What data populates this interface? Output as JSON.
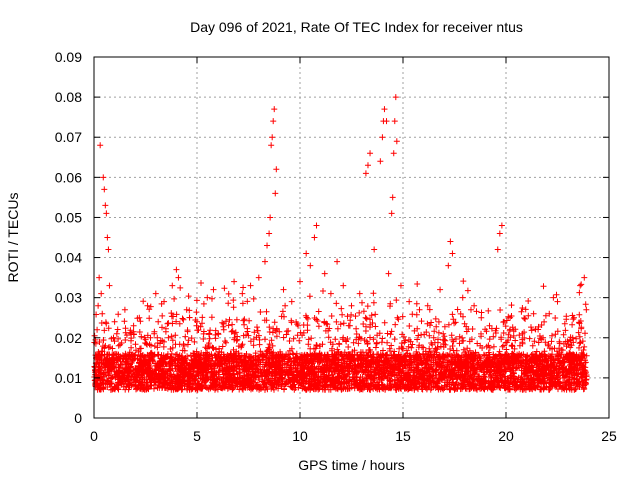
{
  "chart_data": {
    "type": "scatter",
    "title": "Day 096 of 2021, Rate Of TEC Index for receiver ntus",
    "xlabel": "GPS time / hours",
    "ylabel": "ROTI / TECUs",
    "xlim": [
      0,
      25
    ],
    "ylim": [
      0,
      0.09
    ],
    "x_ticks": [
      0,
      5,
      10,
      15,
      20,
      25
    ],
    "x_tick_labels": [
      "0",
      "5",
      "10",
      "15",
      "20",
      "25"
    ],
    "y_ticks": [
      0,
      0.01,
      0.02,
      0.03,
      0.04,
      0.05,
      0.06,
      0.07,
      0.08,
      0.09
    ],
    "y_tick_labels": [
      "0",
      "0.01",
      "0.02",
      "0.03",
      "0.04",
      "0.05",
      "0.06",
      "0.07",
      "0.08",
      "0.09"
    ],
    "grid": true,
    "marker": "+",
    "color": "#ff0000",
    "series": [
      {
        "points": [
          [
            0.05,
            0.012
          ],
          [
            0.1,
            0.015
          ],
          [
            0.15,
            0.022
          ],
          [
            0.2,
            0.028
          ],
          [
            0.25,
            0.035
          ],
          [
            0.3,
            0.068
          ],
          [
            0.35,
            0.031
          ],
          [
            0.4,
            0.026
          ],
          [
            0.45,
            0.06
          ],
          [
            0.5,
            0.057
          ],
          [
            0.55,
            0.053
          ],
          [
            0.6,
            0.051
          ],
          [
            0.65,
            0.045
          ],
          [
            0.7,
            0.042
          ],
          [
            0.75,
            0.033
          ],
          [
            1.0,
            0.024
          ],
          [
            1.2,
            0.018
          ],
          [
            1.5,
            0.027
          ],
          [
            1.8,
            0.021
          ],
          [
            2.2,
            0.025
          ],
          [
            2.6,
            0.028
          ],
          [
            3.0,
            0.031
          ],
          [
            3.4,
            0.029
          ],
          [
            3.8,
            0.033
          ],
          [
            4.0,
            0.037
          ],
          [
            4.1,
            0.035
          ],
          [
            4.5,
            0.027
          ],
          [
            5.0,
            0.024
          ],
          [
            5.5,
            0.03
          ],
          [
            5.8,
            0.032
          ],
          [
            6.3,
            0.022
          ],
          [
            6.8,
            0.034
          ],
          [
            7.2,
            0.031
          ],
          [
            7.6,
            0.033
          ],
          [
            8.0,
            0.035
          ],
          [
            8.3,
            0.039
          ],
          [
            8.4,
            0.043
          ],
          [
            8.5,
            0.046
          ],
          [
            8.55,
            0.05
          ],
          [
            8.6,
            0.068
          ],
          [
            8.65,
            0.07
          ],
          [
            8.7,
            0.074
          ],
          [
            8.75,
            0.077
          ],
          [
            8.8,
            0.056
          ],
          [
            8.85,
            0.062
          ],
          [
            9.2,
            0.032
          ],
          [
            9.6,
            0.029
          ],
          [
            10.0,
            0.034
          ],
          [
            10.3,
            0.041
          ],
          [
            10.5,
            0.038
          ],
          [
            10.7,
            0.045
          ],
          [
            10.8,
            0.048
          ],
          [
            11.2,
            0.036
          ],
          [
            11.5,
            0.031
          ],
          [
            11.8,
            0.039
          ],
          [
            12.1,
            0.033
          ],
          [
            12.5,
            0.028
          ],
          [
            12.9,
            0.031
          ],
          [
            13.2,
            0.061
          ],
          [
            13.3,
            0.063
          ],
          [
            13.4,
            0.066
          ],
          [
            13.6,
            0.042
          ],
          [
            13.9,
            0.064
          ],
          [
            14.0,
            0.07
          ],
          [
            14.05,
            0.074
          ],
          [
            14.1,
            0.077
          ],
          [
            14.2,
            0.074
          ],
          [
            14.3,
            0.036
          ],
          [
            14.45,
            0.051
          ],
          [
            14.5,
            0.055
          ],
          [
            14.55,
            0.066
          ],
          [
            14.6,
            0.074
          ],
          [
            14.65,
            0.08
          ],
          [
            14.7,
            0.069
          ],
          [
            14.9,
            0.033
          ],
          [
            15.3,
            0.029
          ],
          [
            15.8,
            0.027
          ],
          [
            16.2,
            0.028
          ],
          [
            16.8,
            0.032
          ],
          [
            17.2,
            0.038
          ],
          [
            17.3,
            0.044
          ],
          [
            17.4,
            0.041
          ],
          [
            17.9,
            0.03
          ],
          [
            18.3,
            0.027
          ],
          [
            18.8,
            0.025
          ],
          [
            19.2,
            0.023
          ],
          [
            19.6,
            0.042
          ],
          [
            19.7,
            0.046
          ],
          [
            19.8,
            0.048
          ],
          [
            20.2,
            0.025
          ],
          [
            20.8,
            0.021
          ],
          [
            21.3,
            0.018
          ],
          [
            21.8,
            0.02
          ],
          [
            22.1,
            0.026
          ],
          [
            22.3,
            0.03
          ],
          [
            22.5,
            0.029
          ],
          [
            22.9,
            0.019
          ],
          [
            23.3,
            0.025
          ],
          [
            23.6,
            0.033
          ],
          [
            23.8,
            0.035
          ],
          [
            23.9,
            0.027
          ]
        ]
      }
    ]
  }
}
